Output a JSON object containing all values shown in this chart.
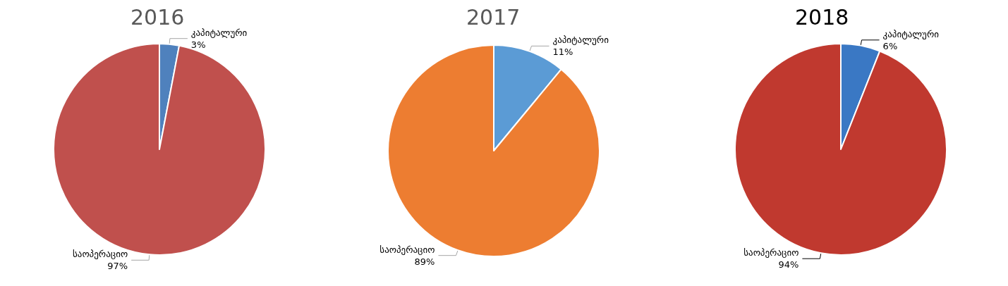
{
  "chart_data": [
    {
      "type": "pie",
      "title": "2016",
      "categories": [
        "კაპიტალური",
        "საოპერაციო"
      ],
      "values": [
        3,
        97
      ],
      "colors": [
        "#4f81bd",
        "#c0504d"
      ],
      "value_labels": [
        "3%",
        "97%"
      ],
      "legend": false
    },
    {
      "type": "pie",
      "title": "2017",
      "categories": [
        "კაპიტალური",
        "საოპერაციო"
      ],
      "values": [
        11,
        89
      ],
      "colors": [
        "#5b9bd5",
        "#ed7d31"
      ],
      "value_labels": [
        "11%",
        "89%"
      ],
      "legend": false
    },
    {
      "type": "pie",
      "title": "2018",
      "categories": [
        "კაპიტალური",
        "საოპერაციო"
      ],
      "values": [
        6,
        94
      ],
      "colors": [
        "#3a78c4",
        "#c0392f"
      ],
      "value_labels": [
        "6%",
        "94%"
      ],
      "legend": false
    }
  ]
}
